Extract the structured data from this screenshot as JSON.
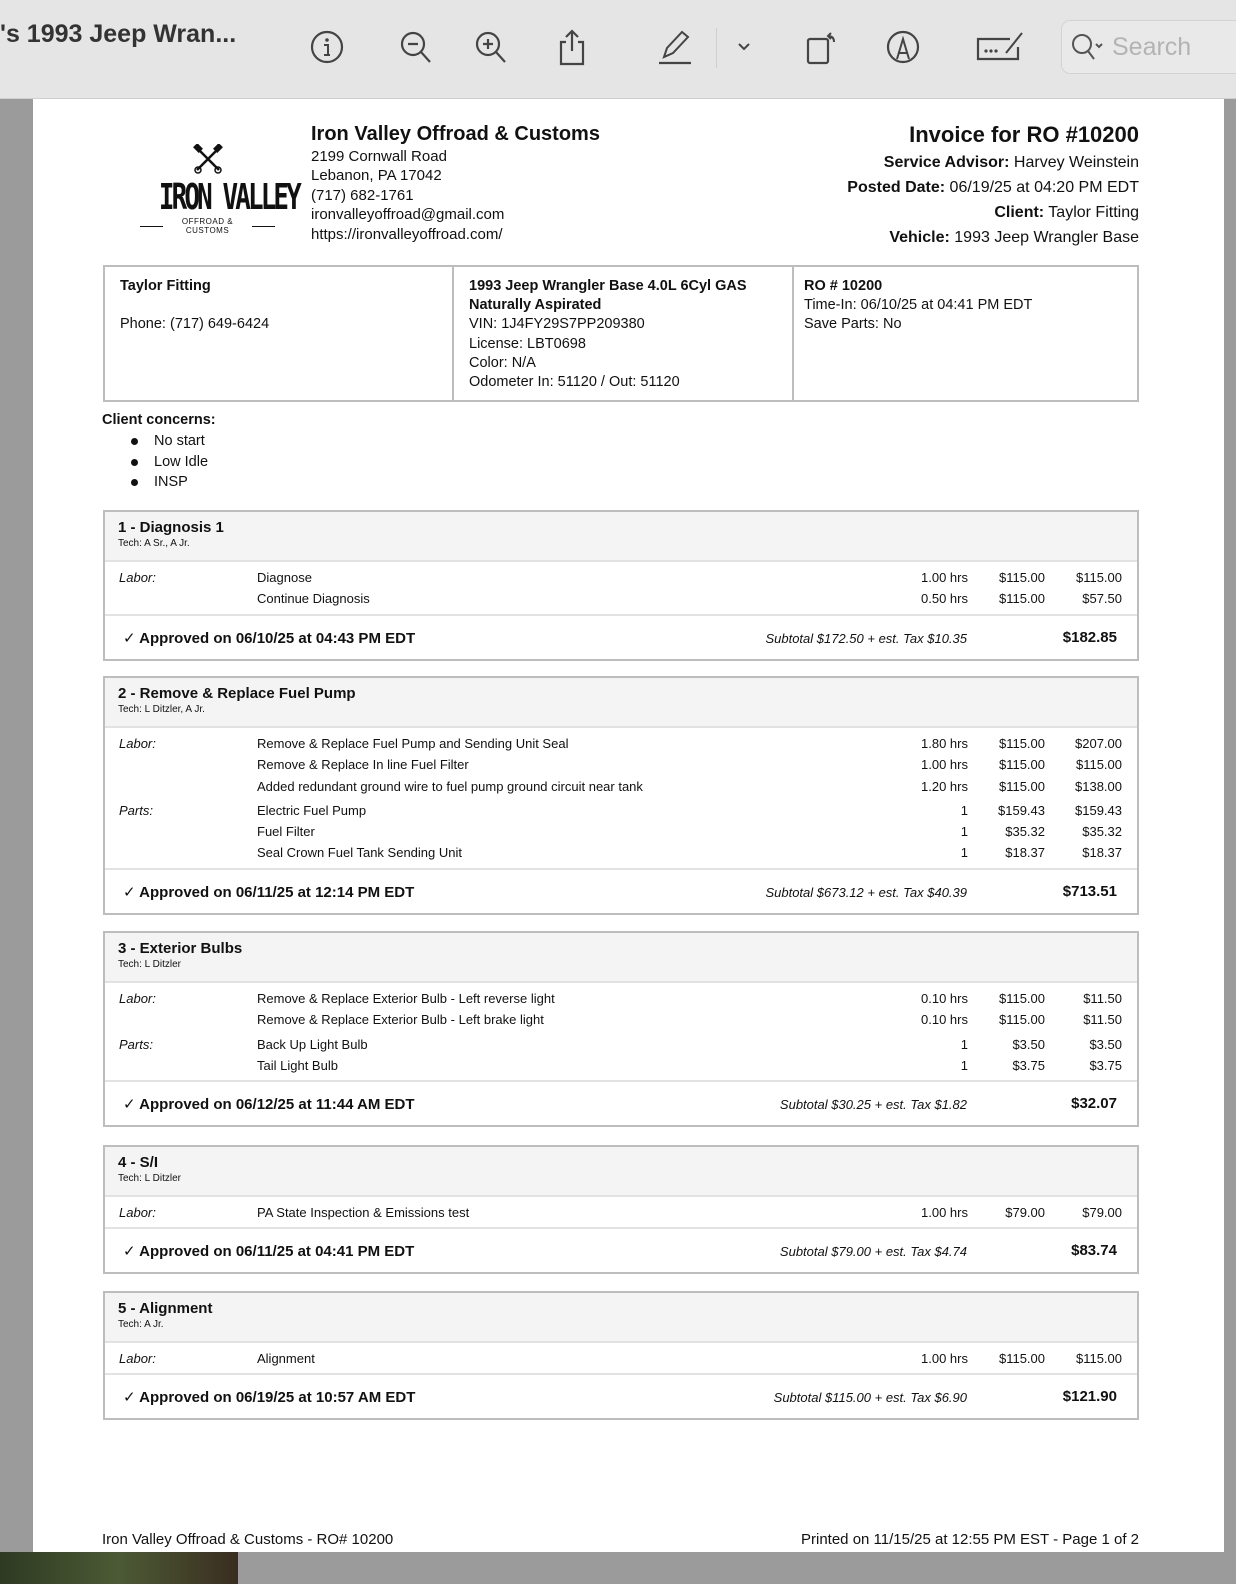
{
  "toolbar": {
    "title": "'s 1993 Jeep Wran...",
    "search_placeholder": "Search",
    "icons": [
      "info-icon",
      "zoom-out-icon",
      "zoom-in-icon",
      "share-icon",
      "markup-pen-icon",
      "chevron-down-icon",
      "rotate-icon",
      "annotate-icon",
      "sign-icon"
    ]
  },
  "logo": {
    "big": "IRON VALLEY",
    "sub": "OFFROAD & CUSTOMS"
  },
  "shop": {
    "name": "Iron Valley Offroad & Customs",
    "address1": "2199 Cornwall Road",
    "address2": "Lebanon, PA 17042",
    "phone": "(717) 682-1761",
    "email": "ironvalleyoffroad@gmail.com",
    "website": "https://ironvalleyoffroad.com/"
  },
  "invoice": {
    "title": "Invoice for RO #10200",
    "advisor_label": "Service Advisor:",
    "advisor": "Harvey Weinstein",
    "posted_label": "Posted Date:",
    "posted": "06/19/25 at 04:20 PM EDT",
    "client_label": "Client:",
    "client": "Taylor Fitting",
    "vehicle_label": "Vehicle:",
    "vehicle": "1993 Jeep Wrangler Base"
  },
  "customer": {
    "name": "Taylor Fitting",
    "phone": "Phone: (717) 649-6424"
  },
  "vehicle": {
    "line1": "1993 Jeep Wrangler Base 4.0L 6Cyl GAS",
    "line2": "Naturally Aspirated",
    "vin": "VIN: 1J4FY29S7PP209380",
    "license": "License: LBT0698",
    "color": "Color: N/A",
    "odometer": "Odometer In: 51120 / Out: 51120"
  },
  "ro": {
    "number": "RO # 10200",
    "time_in": "Time-In: 06/10/25 at 04:41 PM EDT",
    "save_parts": "Save Parts: No"
  },
  "concerns": {
    "label": "Client concerns:",
    "items": [
      "No start",
      "Low Idle",
      "INSP"
    ]
  },
  "jobs": [
    {
      "title": "1 - Diagnosis 1",
      "tech": "Tech: A Sr., A Jr.",
      "lines": [
        {
          "label": "Labor:",
          "desc": "Diagnose",
          "qty": "1.00 hrs",
          "rate": "$115.00",
          "total": "$115.00"
        },
        {
          "label": "",
          "desc": "Continue Diagnosis",
          "qty": "0.50 hrs",
          "rate": "$115.00",
          "total": "$57.50"
        }
      ],
      "approved": "✓ Approved on 06/10/25 at 04:43 PM EDT",
      "subtotal": "Subtotal $172.50 + est. Tax $10.35",
      "total": "$182.85"
    },
    {
      "title": "2 - Remove & Replace Fuel Pump",
      "tech": "Tech: L Ditzler, A Jr.",
      "lines": [
        {
          "label": "Labor:",
          "desc": "Remove & Replace Fuel Pump and Sending Unit Seal",
          "qty": "1.80 hrs",
          "rate": "$115.00",
          "total": "$207.00"
        },
        {
          "label": "",
          "desc": "Remove & Replace In line Fuel Filter",
          "qty": "1.00 hrs",
          "rate": "$115.00",
          "total": "$115.00"
        },
        {
          "label": "",
          "desc": "Added redundant ground wire to fuel pump ground circuit near tank",
          "qty": "1.20 hrs",
          "rate": "$115.00",
          "total": "$138.00"
        },
        {
          "label": "Parts:",
          "desc": "Electric Fuel Pump",
          "qty": "1",
          "rate": "$159.43",
          "total": "$159.43"
        },
        {
          "label": "",
          "desc": "Fuel Filter",
          "qty": "1",
          "rate": "$35.32",
          "total": "$35.32"
        },
        {
          "label": "",
          "desc": "Seal Crown Fuel Tank Sending Unit",
          "qty": "1",
          "rate": "$18.37",
          "total": "$18.37"
        }
      ],
      "approved": "✓ Approved on 06/11/25 at 12:14 PM EDT",
      "subtotal": "Subtotal $673.12 + est. Tax $40.39",
      "total": "$713.51"
    },
    {
      "title": "3 - Exterior Bulbs",
      "tech": "Tech: L Ditzler",
      "lines": [
        {
          "label": "Labor:",
          "desc": "Remove & Replace Exterior Bulb - Left reverse light",
          "qty": "0.10 hrs",
          "rate": "$115.00",
          "total": "$11.50"
        },
        {
          "label": "",
          "desc": "Remove & Replace Exterior Bulb - Left brake light",
          "qty": "0.10 hrs",
          "rate": "$115.00",
          "total": "$11.50"
        },
        {
          "label": "Parts:",
          "desc": "Back Up Light Bulb",
          "qty": "1",
          "rate": "$3.50",
          "total": "$3.50"
        },
        {
          "label": "",
          "desc": "Tail Light Bulb",
          "qty": "1",
          "rate": "$3.75",
          "total": "$3.75"
        }
      ],
      "approved": "✓ Approved on 06/12/25 at 11:44 AM EDT",
      "subtotal": "Subtotal $30.25 + est. Tax $1.82",
      "total": "$32.07"
    },
    {
      "title": "4 - S/I",
      "tech": "Tech: L Ditzler",
      "lines": [
        {
          "label": "Labor:",
          "desc": "PA State Inspection & Emissions test",
          "qty": "1.00 hrs",
          "rate": "$79.00",
          "total": "$79.00"
        }
      ],
      "approved": "✓ Approved on 06/11/25 at 04:41 PM EDT",
      "subtotal": "Subtotal $79.00 + est. Tax $4.74",
      "total": "$83.74"
    },
    {
      "title": "5 - Alignment",
      "tech": "Tech: A Jr.",
      "lines": [
        {
          "label": "Labor:",
          "desc": "Alignment",
          "qty": "1.00 hrs",
          "rate": "$115.00",
          "total": "$115.00"
        }
      ],
      "approved": "✓ Approved on 06/19/25 at 10:57 AM EDT",
      "subtotal": "Subtotal $115.00 + est. Tax $6.90",
      "total": "$121.90"
    }
  ],
  "footer": {
    "left": "Iron Valley Offroad & Customs - RO# 10200",
    "right": "Printed on 11/15/25 at 12:55 PM EST - Page 1 of 2"
  }
}
